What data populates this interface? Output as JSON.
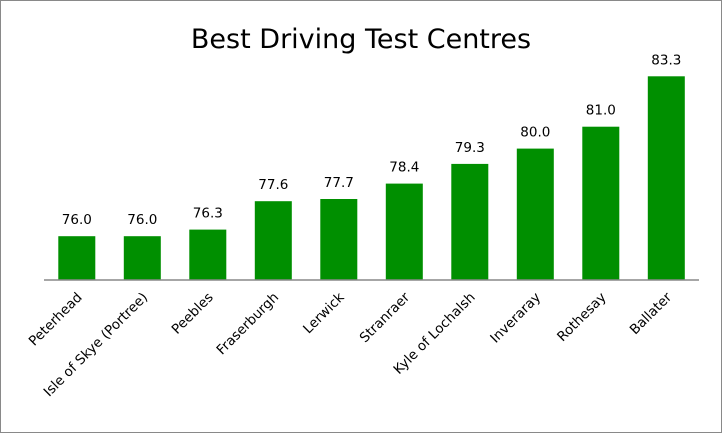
{
  "chart_data": {
    "type": "bar",
    "title": "Best Driving Test Centres",
    "xlabel": "",
    "ylabel": "",
    "categories": [
      "Peterhead",
      "Isle of Skye (Portree)",
      "Peebles",
      "Fraserburgh",
      "Lerwick",
      "Stranraer",
      "Kyle of Lochalsh",
      "Inveraray",
      "Rothesay",
      "Ballater"
    ],
    "values": [
      76.0,
      76.0,
      76.3,
      77.6,
      77.7,
      78.4,
      79.3,
      80.0,
      81.0,
      83.3
    ],
    "value_labels": [
      "76.0",
      "76.0",
      "76.3",
      "77.6",
      "77.7",
      "78.4",
      "79.3",
      "80.0",
      "81.0",
      "83.3"
    ],
    "ylim": [
      74,
      84
    ],
    "grid": false,
    "legend": "none",
    "bar_color": "#008f00",
    "axis_color": "#898989"
  }
}
